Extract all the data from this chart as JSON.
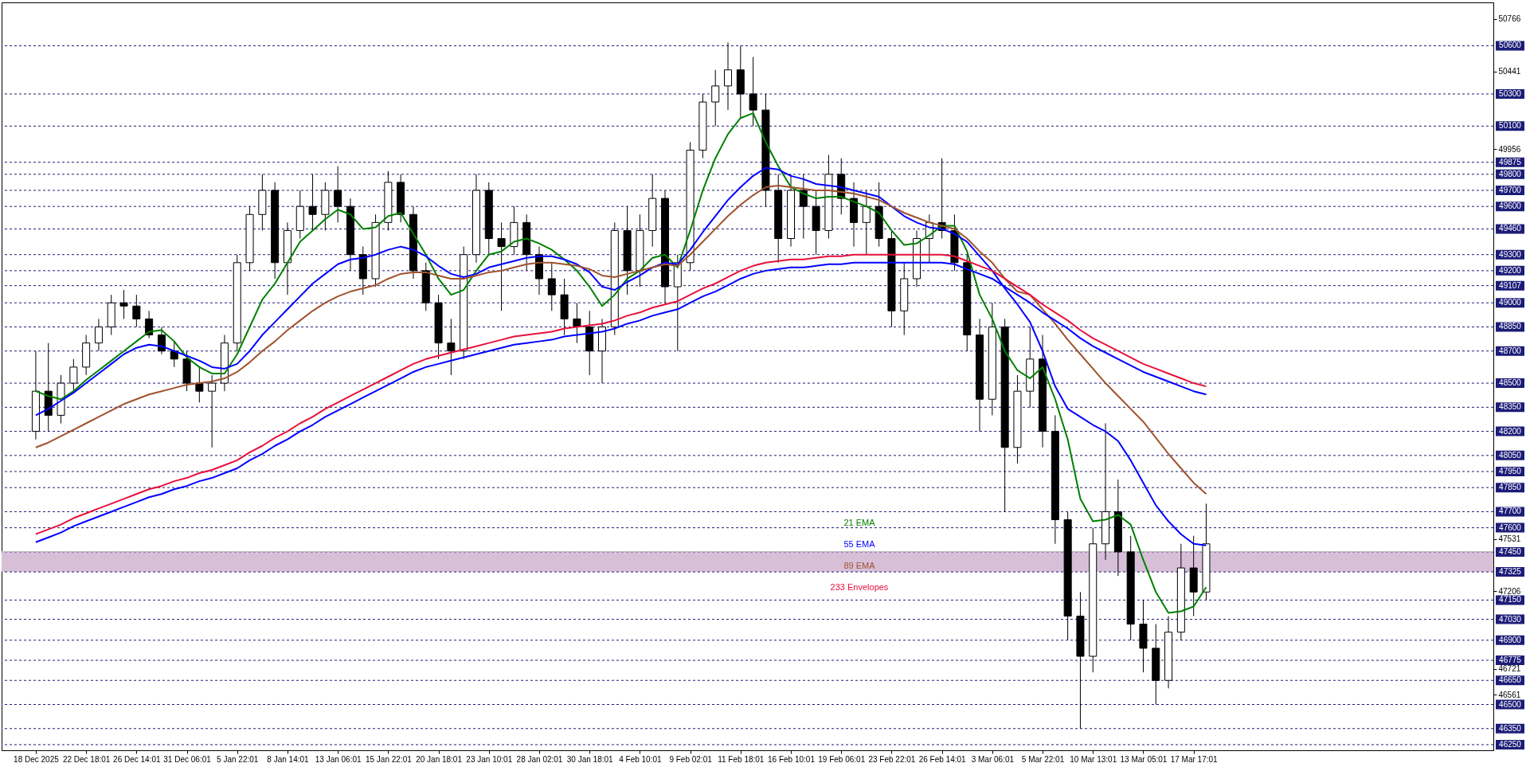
{
  "chart_data": {
    "type": "candlestick",
    "color": "#000000",
    "legend": "bottom",
    "ylim": [
      46215,
      50870
    ],
    "yticks": [
      50766,
      50441,
      49956,
      47531,
      47206,
      46721,
      46561
    ],
    "categories": [
      "18 Dec 2025",
      null,
      null,
      null,
      "22 Dec 18:01",
      null,
      null,
      null,
      "26 Dec 14:01",
      null,
      null,
      null,
      "31 Dec 06:01",
      null,
      null,
      null,
      "5 Jan 22:01",
      null,
      null,
      null,
      "8 Jan 14:01",
      null,
      null,
      null,
      "13 Jan 06:01",
      null,
      null,
      null,
      "15 Jan 22:01",
      null,
      null,
      null,
      "20 Jan 18:01",
      null,
      null,
      null,
      "23 Jan 10:01",
      null,
      null,
      null,
      "28 Jan 02:01",
      null,
      null,
      null,
      "30 Jan 18:01",
      null,
      null,
      null,
      "4 Feb 10:01",
      null,
      null,
      null,
      "9 Feb 02:01",
      null,
      null,
      null,
      "11 Feb 18:01",
      null,
      null,
      null,
      "16 Feb 10:01",
      null,
      null,
      null,
      "19 Feb 06:01",
      null,
      null,
      null,
      "23 Feb 22:01",
      null,
      null,
      null,
      "26 Feb 14:01",
      null,
      null,
      null,
      "3 Mar 06:01",
      null,
      null,
      null,
      "5 Mar 22:01",
      null,
      null,
      null,
      "10 Mar 13:01",
      null,
      null,
      null,
      "13 Mar 05:01",
      null,
      null,
      null,
      "17 Mar 17:01",
      null
    ],
    "ohlc": [
      [
        48200,
        48700,
        48150,
        48450
      ],
      [
        48450,
        48750,
        48200,
        48300
      ],
      [
        48300,
        48550,
        48250,
        48500
      ],
      [
        48500,
        48650,
        48450,
        48600
      ],
      [
        48600,
        48800,
        48550,
        48750
      ],
      [
        48750,
        48900,
        48700,
        48850
      ],
      [
        48850,
        49050,
        48800,
        49000
      ],
      [
        49000,
        49080,
        48900,
        48980
      ],
      [
        48980,
        49050,
        48850,
        48900
      ],
      [
        48900,
        48950,
        48780,
        48800
      ],
      [
        48800,
        48850,
        48680,
        48700
      ],
      [
        48700,
        48760,
        48600,
        48650
      ],
      [
        48650,
        48700,
        48450,
        48500
      ],
      [
        48500,
        48600,
        48380,
        48450
      ],
      [
        48450,
        48550,
        48100,
        48500
      ],
      [
        48500,
        48800,
        48450,
        48750
      ],
      [
        48750,
        49300,
        48700,
        49250
      ],
      [
        49250,
        49600,
        49200,
        49550
      ],
      [
        49550,
        49800,
        49450,
        49700
      ],
      [
        49700,
        49750,
        49150,
        49250
      ],
      [
        49250,
        49500,
        49050,
        49450
      ],
      [
        49450,
        49700,
        49400,
        49600
      ],
      [
        49600,
        49800,
        49450,
        49550
      ],
      [
        49550,
        49750,
        49450,
        49700
      ],
      [
        49700,
        49850,
        49500,
        49600
      ],
      [
        49600,
        49650,
        49200,
        49300
      ],
      [
        49300,
        49350,
        49050,
        49150
      ],
      [
        49150,
        49550,
        49100,
        49500
      ],
      [
        49500,
        49820,
        49450,
        49750
      ],
      [
        49750,
        49800,
        49500,
        49550
      ],
      [
        49550,
        49600,
        49150,
        49200
      ],
      [
        49200,
        49250,
        48950,
        49000
      ],
      [
        49000,
        49050,
        48650,
        48750
      ],
      [
        48750,
        48900,
        48550,
        48700
      ],
      [
        48700,
        49350,
        48650,
        49300
      ],
      [
        49300,
        49800,
        49250,
        49700
      ],
      [
        49700,
        49750,
        49300,
        49400
      ],
      [
        49400,
        49500,
        48950,
        49350
      ],
      [
        49350,
        49600,
        49300,
        49500
      ],
      [
        49500,
        49550,
        49200,
        49300
      ],
      [
        49300,
        49350,
        49050,
        49150
      ],
      [
        49150,
        49250,
        48950,
        49050
      ],
      [
        49050,
        49150,
        48800,
        48900
      ],
      [
        48900,
        49000,
        48750,
        48850
      ],
      [
        48850,
        48950,
        48550,
        48700
      ],
      [
        48700,
        48900,
        48500,
        48850
      ],
      [
        48850,
        49500,
        48800,
        49450
      ],
      [
        49450,
        49600,
        49050,
        49200
      ],
      [
        49200,
        49550,
        49100,
        49450
      ],
      [
        49450,
        49800,
        49350,
        49650
      ],
      [
        49650,
        49700,
        49000,
        49100
      ],
      [
        49100,
        49300,
        48700,
        49250
      ],
      [
        49250,
        50000,
        49200,
        49950
      ],
      [
        49950,
        50300,
        49900,
        50250
      ],
      [
        50250,
        50450,
        50100,
        50350
      ],
      [
        50350,
        50620,
        50200,
        50450
      ],
      [
        50450,
        50600,
        50150,
        50300
      ],
      [
        50300,
        50530,
        50100,
        50200
      ],
      [
        50200,
        50300,
        49600,
        49700
      ],
      [
        49700,
        49800,
        49250,
        49400
      ],
      [
        49400,
        49800,
        49350,
        49700
      ],
      [
        49700,
        49800,
        49400,
        49600
      ],
      [
        49600,
        49700,
        49300,
        49450
      ],
      [
        49450,
        49920,
        49400,
        49800
      ],
      [
        49800,
        49900,
        49550,
        49650
      ],
      [
        49650,
        49750,
        49350,
        49500
      ],
      [
        49500,
        49700,
        49300,
        49600
      ],
      [
        49600,
        49750,
        49350,
        49400
      ],
      [
        49400,
        49450,
        48850,
        48950
      ],
      [
        48950,
        49250,
        48800,
        49150
      ],
      [
        49150,
        49450,
        49100,
        49400
      ],
      [
        49400,
        49550,
        49250,
        49500
      ],
      [
        49500,
        49900,
        49400,
        49450
      ],
      [
        49450,
        49550,
        49200,
        49250
      ],
      [
        49250,
        49300,
        48700,
        48800
      ],
      [
        48800,
        48900,
        48200,
        48400
      ],
      [
        48400,
        49000,
        48300,
        48850
      ],
      [
        48850,
        48900,
        47700,
        48100
      ],
      [
        48100,
        48550,
        48000,
        48450
      ],
      [
        48450,
        48850,
        48350,
        48650
      ],
      [
        48650,
        48800,
        48100,
        48200
      ],
      [
        48200,
        48300,
        47500,
        47650
      ],
      [
        47650,
        47700,
        46900,
        47050
      ],
      [
        47050,
        47200,
        46350,
        46800
      ],
      [
        46800,
        47600,
        46700,
        47500
      ],
      [
        47500,
        48250,
        47400,
        47700
      ],
      [
        47700,
        47900,
        47300,
        47450
      ],
      [
        47450,
        47550,
        46900,
        47000
      ],
      [
        47000,
        47150,
        46700,
        46850
      ],
      [
        46850,
        47000,
        46500,
        46650
      ],
      [
        46650,
        47050,
        46600,
        46950
      ],
      [
        46950,
        47500,
        46900,
        47350
      ],
      [
        47350,
        47550,
        47050,
        47200
      ],
      [
        47200,
        47750,
        47150,
        47500
      ]
    ],
    "series": [
      {
        "type": "line",
        "name": "21 EMA",
        "color": "#008000",
        "values": [
          48450,
          48420,
          48400,
          48450,
          48520,
          48580,
          48640,
          48700,
          48760,
          48820,
          48830,
          48760,
          48660,
          48600,
          48560,
          48560,
          48680,
          48850,
          49020,
          49120,
          49250,
          49380,
          49450,
          49520,
          49580,
          49550,
          49460,
          49470,
          49540,
          49560,
          49430,
          49300,
          49150,
          49050,
          49080,
          49200,
          49300,
          49320,
          49380,
          49400,
          49370,
          49330,
          49270,
          49200,
          49100,
          48980,
          49050,
          49150,
          49200,
          49280,
          49300,
          49220,
          49450,
          49700,
          49900,
          50050,
          50150,
          50180,
          50000,
          49850,
          49720,
          49680,
          49650,
          49660,
          49660,
          49630,
          49600,
          49560,
          49450,
          49360,
          49370,
          49420,
          49480,
          49480,
          49320,
          49050,
          48900,
          48700,
          48580,
          48530,
          48600,
          48400,
          48150,
          47780,
          47640,
          47650,
          47680,
          47620,
          47400,
          47200,
          47070,
          47080,
          47110,
          47230
        ]
      },
      {
        "type": "line",
        "name": "55 EMA",
        "color": "#0000ff",
        "values": [
          48300,
          48340,
          48390,
          48440,
          48500,
          48560,
          48620,
          48680,
          48720,
          48740,
          48730,
          48700,
          48670,
          48640,
          48600,
          48590,
          48620,
          48700,
          48800,
          48880,
          48960,
          49040,
          49120,
          49180,
          49240,
          49270,
          49280,
          49300,
          49330,
          49350,
          49330,
          49290,
          49230,
          49180,
          49160,
          49180,
          49220,
          49240,
          49260,
          49280,
          49290,
          49290,
          49270,
          49240,
          49190,
          49100,
          49080,
          49130,
          49170,
          49220,
          49250,
          49240,
          49330,
          49440,
          49540,
          49640,
          49720,
          49790,
          49840,
          49830,
          49790,
          49770,
          49740,
          49730,
          49720,
          49700,
          49680,
          49660,
          49600,
          49540,
          49500,
          49470,
          49460,
          49430,
          49380,
          49290,
          49200,
          49090,
          48990,
          48880,
          48700,
          48480,
          48340,
          48290,
          48240,
          48200,
          48140,
          48020,
          47880,
          47740,
          47640,
          47560,
          47500,
          47490
        ]
      },
      {
        "type": "line",
        "name": "89 EMA",
        "color": "#a0522d",
        "values": [
          48100,
          48130,
          48170,
          48210,
          48250,
          48290,
          48330,
          48370,
          48400,
          48430,
          48450,
          48470,
          48490,
          48500,
          48510,
          48530,
          48570,
          48630,
          48700,
          48760,
          48830,
          48890,
          48950,
          49000,
          49040,
          49070,
          49090,
          49110,
          49150,
          49180,
          49190,
          49190,
          49170,
          49150,
          49150,
          49170,
          49190,
          49200,
          49220,
          49240,
          49250,
          49250,
          49240,
          49230,
          49210,
          49170,
          49160,
          49180,
          49200,
          49220,
          49240,
          49230,
          49300,
          49380,
          49460,
          49540,
          49610,
          49670,
          49720,
          49730,
          49720,
          49710,
          49700,
          49700,
          49690,
          49680,
          49660,
          49640,
          49600,
          49560,
          49530,
          49500,
          49480,
          49460,
          49400,
          49320,
          49250,
          49150,
          49070,
          49050,
          48960,
          48870,
          48770,
          48680,
          48590,
          48500,
          48420,
          48340,
          48260,
          48160,
          48060,
          47970,
          47880,
          47810
        ]
      },
      {
        "type": "line",
        "name": "233 Envelopes",
        "color": "#e8103c",
        "values": [
          47560,
          47590,
          47620,
          47660,
          47690,
          47720,
          47750,
          47780,
          47810,
          47840,
          47860,
          47890,
          47910,
          47940,
          47960,
          47990,
          48020,
          48070,
          48110,
          48160,
          48200,
          48250,
          48290,
          48340,
          48380,
          48420,
          48460,
          48500,
          48540,
          48580,
          48620,
          48650,
          48670,
          48690,
          48710,
          48730,
          48750,
          48770,
          48790,
          48800,
          48810,
          48820,
          48840,
          48850,
          48860,
          48870,
          48890,
          48920,
          48940,
          48970,
          48990,
          49010,
          49050,
          49090,
          49120,
          49160,
          49200,
          49230,
          49250,
          49260,
          49270,
          49270,
          49280,
          49290,
          49290,
          49300,
          49300,
          49300,
          49300,
          49300,
          49300,
          49300,
          49300,
          49290,
          49260,
          49230,
          49200,
          49150,
          49100,
          49050,
          48990,
          48940,
          48890,
          48830,
          48780,
          48740,
          48700,
          48660,
          48620,
          48590,
          48560,
          48530,
          48500,
          48480
        ]
      },
      {
        "type": "line",
        "color": "#0000ff",
        "values": [
          47510,
          47540,
          47570,
          47610,
          47640,
          47670,
          47700,
          47730,
          47760,
          47790,
          47810,
          47840,
          47860,
          47890,
          47910,
          47940,
          47970,
          48020,
          48060,
          48110,
          48150,
          48200,
          48240,
          48290,
          48330,
          48370,
          48410,
          48450,
          48490,
          48530,
          48570,
          48600,
          48620,
          48640,
          48660,
          48680,
          48700,
          48720,
          48740,
          48750,
          48760,
          48770,
          48790,
          48800,
          48810,
          48820,
          48840,
          48870,
          48890,
          48920,
          48940,
          48960,
          49000,
          49040,
          49070,
          49110,
          49150,
          49180,
          49200,
          49210,
          49220,
          49220,
          49230,
          49240,
          49240,
          49250,
          49250,
          49250,
          49250,
          49250,
          49250,
          49250,
          49250,
          49240,
          49210,
          49180,
          49150,
          49100,
          49050,
          49000,
          48940,
          48890,
          48840,
          48780,
          48730,
          48690,
          48650,
          48610,
          48570,
          48540,
          48510,
          48480,
          48450,
          48430
        ]
      }
    ],
    "bands": [
      {
        "axis": "y",
        "from": 47325,
        "to": 47450,
        "color": "#d8bfd8"
      }
    ],
    "ref_lines": [
      {
        "axis": "y",
        "value": 50600,
        "label": "50600",
        "color": "#1c1c78",
        "line_style": "dashed"
      },
      {
        "axis": "y",
        "value": 50300,
        "label": "50300",
        "color": "#1c1c78",
        "line_style": "dashed"
      },
      {
        "axis": "y",
        "value": 50100,
        "label": "50100",
        "color": "#1c1c78",
        "line_style": "dashed"
      },
      {
        "axis": "y",
        "value": 49875,
        "label": "49875",
        "color": "#1c1c78",
        "line_style": "dashed"
      },
      {
        "axis": "y",
        "value": 49800,
        "label": "49800",
        "color": "#1c1c78",
        "line_style": "dashed"
      },
      {
        "axis": "y",
        "value": 49700,
        "label": "49700",
        "color": "#1c1c78",
        "line_style": "dashed"
      },
      {
        "axis": "y",
        "value": 49600,
        "label": "49600",
        "color": "#1c1c78",
        "line_style": "dashed"
      },
      {
        "axis": "y",
        "value": 49460,
        "label": "49460",
        "color": "#1c1c78",
        "line_style": "dashed"
      },
      {
        "axis": "y",
        "value": 49300,
        "label": "49300",
        "color": "#1c1c78",
        "line_style": "dashed"
      },
      {
        "axis": "y",
        "value": 49200,
        "label": "49200",
        "color": "#1c1c78",
        "line_style": "dashed"
      },
      {
        "axis": "y",
        "value": 49107,
        "label": "49107",
        "color": "#1c1c78",
        "line_style": "dashed"
      },
      {
        "axis": "y",
        "value": 49000,
        "label": "49000",
        "color": "#1c1c78",
        "line_style": "dashed"
      },
      {
        "axis": "y",
        "value": 48850,
        "label": "48850",
        "color": "#1c1c78",
        "line_style": "dashed"
      },
      {
        "axis": "y",
        "value": 48700,
        "label": "48700",
        "color": "#1c1c78",
        "line_style": "dashed"
      },
      {
        "axis": "y",
        "value": 48500,
        "label": "48500",
        "color": "#1c1c78",
        "line_style": "dashed"
      },
      {
        "axis": "y",
        "value": 48350,
        "label": "48350",
        "color": "#1c1c78",
        "line_style": "dashed"
      },
      {
        "axis": "y",
        "value": 48200,
        "label": "48200",
        "color": "#1c1c78",
        "line_style": "dashed"
      },
      {
        "axis": "y",
        "value": 48050,
        "label": "48050",
        "color": "#1c1c78",
        "line_style": "dashed"
      },
      {
        "axis": "y",
        "value": 47950,
        "label": "47950",
        "color": "#1c1c78",
        "line_style": "dashed"
      },
      {
        "axis": "y",
        "value": 47850,
        "label": "47850",
        "color": "#1c1c78",
        "line_style": "dashed"
      },
      {
        "axis": "y",
        "value": 47700,
        "label": "47700",
        "color": "#1c1c78",
        "line_style": "dashed"
      },
      {
        "axis": "y",
        "value": 47600,
        "label": "47600",
        "color": "#1c1c78",
        "line_style": "dashed"
      },
      {
        "axis": "y",
        "value": 47450,
        "label": "47450",
        "color": "#1c1c78",
        "line_style": "dashed"
      },
      {
        "axis": "y",
        "value": 47325,
        "label": "47325",
        "color": "#1c1c78",
        "line_style": "dashed"
      },
      {
        "axis": "y",
        "value": 47150,
        "label": "47150",
        "color": "#1c1c78",
        "line_style": "dashed"
      },
      {
        "axis": "y",
        "value": 47030,
        "label": "47030",
        "color": "#1c1c78",
        "line_style": "dashed"
      },
      {
        "axis": "y",
        "value": 46900,
        "label": "46900",
        "color": "#1c1c78",
        "line_style": "dashed"
      },
      {
        "axis": "y",
        "value": 46775,
        "label": "46775",
        "color": "#1c1c78",
        "line_style": "dashed"
      },
      {
        "axis": "y",
        "value": 46650,
        "label": "46650",
        "color": "#1c1c78",
        "line_style": "dashed"
      },
      {
        "axis": "y",
        "value": 46500,
        "label": "46500",
        "color": "#1c1c78",
        "line_style": "dashed"
      },
      {
        "axis": "y",
        "value": 46350,
        "label": "46350",
        "color": "#1c1c78",
        "line_style": "dashed"
      },
      {
        "axis": "y",
        "value": 46250,
        "label": "46250",
        "color": "#1c1c78",
        "line_style": "dashed"
      },
      {
        "axis": "y",
        "value": 47452,
        "label": null,
        "color": "#c0c0c0",
        "line_style": "solid"
      }
    ]
  }
}
